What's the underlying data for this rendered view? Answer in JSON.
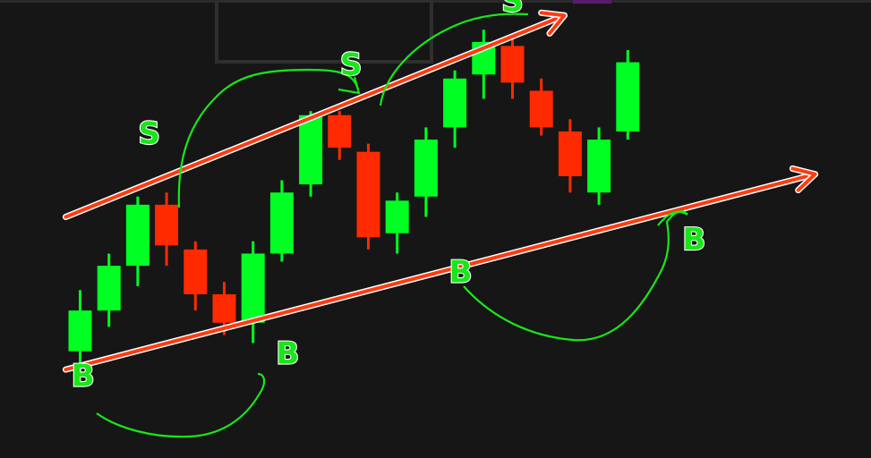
{
  "chart_data": {
    "type": "candlestick",
    "title": "",
    "xlabel": "",
    "ylabel": "",
    "grid": false,
    "legend": "none",
    "ylim": [
      0,
      100
    ],
    "colors": {
      "up": "#00ff22",
      "down": "#ff2a00",
      "trendline": "#ff3b10",
      "annotation": "#19e619",
      "background": "#161616"
    },
    "candles": [
      {
        "index": 1,
        "open": 17.0,
        "high": 32.0,
        "low": 12.0,
        "close": 27.0
      },
      {
        "index": 2,
        "open": 27.0,
        "high": 41.0,
        "low": 23.0,
        "close": 38.0
      },
      {
        "index": 3,
        "open": 38.0,
        "high": 55.0,
        "low": 33.0,
        "close": 53.0
      },
      {
        "index": 4,
        "open": 53.0,
        "high": 56.0,
        "low": 38.0,
        "close": 43.0
      },
      {
        "index": 5,
        "open": 42.0,
        "high": 44.0,
        "low": 27.0,
        "close": 31.0
      },
      {
        "index": 6,
        "open": 31.0,
        "high": 34.0,
        "low": 21.0,
        "close": 24.0
      },
      {
        "index": 7,
        "open": 24.0,
        "high": 44.0,
        "low": 19.0,
        "close": 41.0
      },
      {
        "index": 8,
        "open": 41.0,
        "high": 59.0,
        "low": 39.0,
        "close": 56.0
      },
      {
        "index": 9,
        "open": 58.0,
        "high": 76.0,
        "low": 55.0,
        "close": 75.0
      },
      {
        "index": 10,
        "open": 75.0,
        "high": 76.0,
        "low": 64.0,
        "close": 67.0
      },
      {
        "index": 11,
        "open": 66.0,
        "high": 68.0,
        "low": 42.0,
        "close": 45.0
      },
      {
        "index": 12,
        "open": 46.0,
        "high": 56.0,
        "low": 41.0,
        "close": 54.0
      },
      {
        "index": 13,
        "open": 55.0,
        "high": 72.0,
        "low": 50.0,
        "close": 69.0
      },
      {
        "index": 14,
        "open": 72.0,
        "high": 86.0,
        "low": 67.0,
        "close": 84.0
      },
      {
        "index": 15,
        "open": 85.0,
        "high": 96.0,
        "low": 79.0,
        "close": 93.0
      },
      {
        "index": 16,
        "open": 92.0,
        "high": 95.0,
        "low": 79.0,
        "close": 83.0
      },
      {
        "index": 17,
        "open": 81.0,
        "high": 84.0,
        "low": 70.0,
        "close": 72.0
      },
      {
        "index": 18,
        "open": 71.0,
        "high": 74.0,
        "low": 56.0,
        "close": 60.0
      },
      {
        "index": 19,
        "open": 56.0,
        "high": 72.0,
        "low": 53.0,
        "close": 69.0
      },
      {
        "index": 20,
        "open": 71.0,
        "high": 91.0,
        "low": 69.0,
        "close": 88.0
      }
    ],
    "trendlines": [
      {
        "name": "",
        "role": "resistance",
        "from": {
          "index": 0.5,
          "value": 50.0
        },
        "to": {
          "index": 17.8,
          "value": 99.5
        }
      },
      {
        "name": "",
        "role": "support",
        "from": {
          "index": 0.5,
          "value": 12.5
        },
        "to": {
          "index": 26.5,
          "value": 60.5
        }
      }
    ],
    "annotations": [
      {
        "text": "S",
        "role": "sell",
        "anchor": {
          "index": 3.4,
          "value": 68.0
        }
      },
      {
        "text": "S",
        "role": "sell",
        "anchor": {
          "index": 10.4,
          "value": 85.0
        }
      },
      {
        "text": "S",
        "role": "sell",
        "anchor": {
          "index": 16.0,
          "value": 100.5
        }
      },
      {
        "text": "B",
        "role": "buy",
        "anchor": {
          "index": 1.1,
          "value": 8.5
        }
      },
      {
        "text": "B",
        "role": "buy",
        "anchor": {
          "index": 8.2,
          "value": 14.0
        }
      },
      {
        "text": "B",
        "role": "buy",
        "anchor": {
          "index": 14.2,
          "value": 34.0
        }
      },
      {
        "text": "B",
        "role": "buy",
        "anchor": {
          "index": 22.3,
          "value": 42.0
        }
      }
    ]
  }
}
